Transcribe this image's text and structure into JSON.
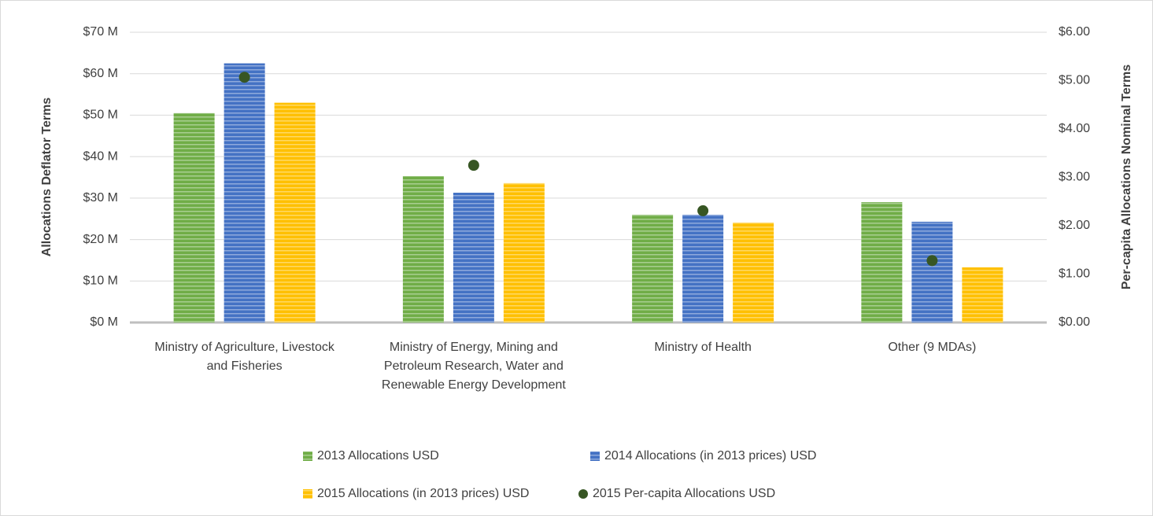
{
  "chart_data": {
    "type": "bar",
    "y_label": "Allocations Deflator Terms",
    "y2_label": "Per-capita Allocations Nominal Terms",
    "categories": [
      "Ministry of Agriculture, Livestock and Fisheries",
      "Ministry of Energy, Mining and Petroleum Research, Water and Renewable Energy Development",
      "Ministry of Health",
      "Other (9 MDAs)"
    ],
    "series": [
      {
        "name": "2013 Allocations USD",
        "color": "#70ad47",
        "values": [
          50.5,
          35.3,
          26,
          29
        ]
      },
      {
        "name": "2014 Allocations (in 2013 prices) USD",
        "color": "#4472c4",
        "values": [
          62.5,
          31.3,
          26,
          24.3
        ]
      },
      {
        "name": "2015 Allocations (in 2013 prices) USD",
        "color": "#ffc000",
        "values": [
          53,
          33.6,
          24.1,
          13.3
        ]
      },
      {
        "name": "2015 Per-capita Allocations USD",
        "color": "#375623",
        "type": "scatter",
        "axis": "y2",
        "values": [
          5.07,
          3.25,
          2.31,
          1.28
        ]
      }
    ],
    "ylim": [
      0,
      70
    ],
    "yticks": [
      {
        "value": 0,
        "label": "$0 M"
      },
      {
        "value": 10,
        "label": "$10 M"
      },
      {
        "value": 20,
        "label": "$20 M"
      },
      {
        "value": 30,
        "label": "$30 M"
      },
      {
        "value": 40,
        "label": "$40 M"
      },
      {
        "value": 50,
        "label": "$50 M"
      },
      {
        "value": 60,
        "label": "$60 M"
      },
      {
        "value": 70,
        "label": "$70 M"
      }
    ],
    "y2lim": [
      0,
      6
    ],
    "y2ticks": [
      {
        "value": 0,
        "label": "$0.00"
      },
      {
        "value": 1,
        "label": "$1.00"
      },
      {
        "value": 2,
        "label": "$2.00"
      },
      {
        "value": 3,
        "label": "$3.00"
      },
      {
        "value": 4,
        "label": "$4.00"
      },
      {
        "value": 5,
        "label": "$5.00"
      },
      {
        "value": 6,
        "label": "$6.00"
      }
    ],
    "grid": true,
    "legend": "bottom"
  }
}
